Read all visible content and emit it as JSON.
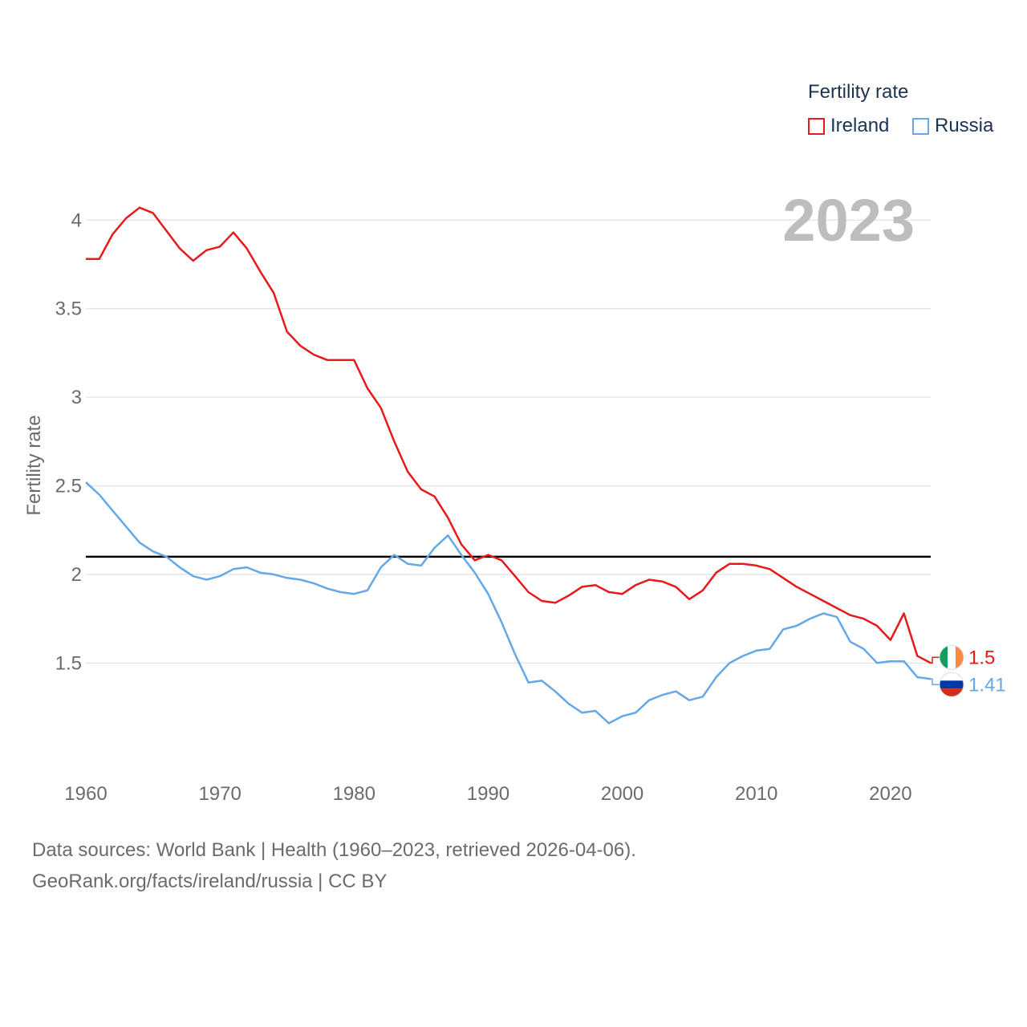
{
  "legend": {
    "title": "Fertility rate",
    "items": [
      {
        "label": "Ireland",
        "color": "#e8191a"
      },
      {
        "label": "Russia",
        "color": "#64a8e8"
      }
    ]
  },
  "year_label": "2023",
  "source_line_1": "Data sources: World Bank | Health (1960–2023, retrieved 2026-04-06).",
  "source_line_2": "GeoRank.org/facts/ireland/russia | CC BY",
  "chart_data": {
    "type": "line",
    "title": "",
    "xlabel": "",
    "ylabel": "Fertility rate",
    "xlim": [
      1960,
      2023
    ],
    "ylim": [
      0.94,
      4.3
    ],
    "xticks": [
      1960,
      1970,
      1980,
      1990,
      2000,
      2010,
      2020
    ],
    "yticks": [
      1.5,
      2,
      2.5,
      3,
      3.5,
      4
    ],
    "ytick_labels": [
      "1.5",
      "2",
      "2.5",
      "3",
      "3.5",
      "4"
    ],
    "reference_line": 2.1,
    "x": [
      1960,
      1961,
      1962,
      1963,
      1964,
      1965,
      1966,
      1967,
      1968,
      1969,
      1970,
      1971,
      1972,
      1973,
      1974,
      1975,
      1976,
      1977,
      1978,
      1979,
      1980,
      1981,
      1982,
      1983,
      1984,
      1985,
      1986,
      1987,
      1988,
      1989,
      1990,
      1991,
      1992,
      1993,
      1994,
      1995,
      1996,
      1997,
      1998,
      1999,
      2000,
      2001,
      2002,
      2003,
      2004,
      2005,
      2006,
      2007,
      2008,
      2009,
      2010,
      2011,
      2012,
      2013,
      2014,
      2015,
      2016,
      2017,
      2018,
      2019,
      2020,
      2021,
      2022,
      2023
    ],
    "series": [
      {
        "name": "Ireland",
        "color": "#e8191a",
        "end_label": "1.5",
        "values": [
          3.78,
          3.78,
          3.92,
          4.01,
          4.07,
          4.04,
          3.94,
          3.84,
          3.77,
          3.83,
          3.85,
          3.93,
          3.84,
          3.71,
          3.59,
          3.37,
          3.29,
          3.24,
          3.21,
          3.21,
          3.21,
          3.05,
          2.94,
          2.75,
          2.58,
          2.48,
          2.44,
          2.32,
          2.17,
          2.08,
          2.11,
          2.08,
          1.99,
          1.9,
          1.85,
          1.84,
          1.88,
          1.93,
          1.94,
          1.9,
          1.89,
          1.94,
          1.97,
          1.96,
          1.93,
          1.86,
          1.91,
          2.01,
          2.06,
          2.06,
          2.05,
          2.03,
          1.98,
          1.93,
          1.89,
          1.85,
          1.81,
          1.77,
          1.75,
          1.71,
          1.63,
          1.78,
          1.54,
          1.5
        ]
      },
      {
        "name": "Russia",
        "color": "#64a8e8",
        "end_label": "1.41",
        "values": [
          2.52,
          2.45,
          2.36,
          2.27,
          2.18,
          2.13,
          2.1,
          2.04,
          1.99,
          1.97,
          1.99,
          2.03,
          2.04,
          2.01,
          2.0,
          1.98,
          1.97,
          1.95,
          1.92,
          1.9,
          1.89,
          1.91,
          2.04,
          2.11,
          2.06,
          2.05,
          2.15,
          2.22,
          2.11,
          2.01,
          1.89,
          1.73,
          1.55,
          1.39,
          1.4,
          1.34,
          1.27,
          1.22,
          1.23,
          1.16,
          1.2,
          1.22,
          1.29,
          1.32,
          1.34,
          1.29,
          1.31,
          1.42,
          1.5,
          1.54,
          1.57,
          1.58,
          1.69,
          1.71,
          1.75,
          1.78,
          1.76,
          1.62,
          1.58,
          1.5,
          1.51,
          1.51,
          1.42,
          1.41
        ]
      }
    ]
  }
}
